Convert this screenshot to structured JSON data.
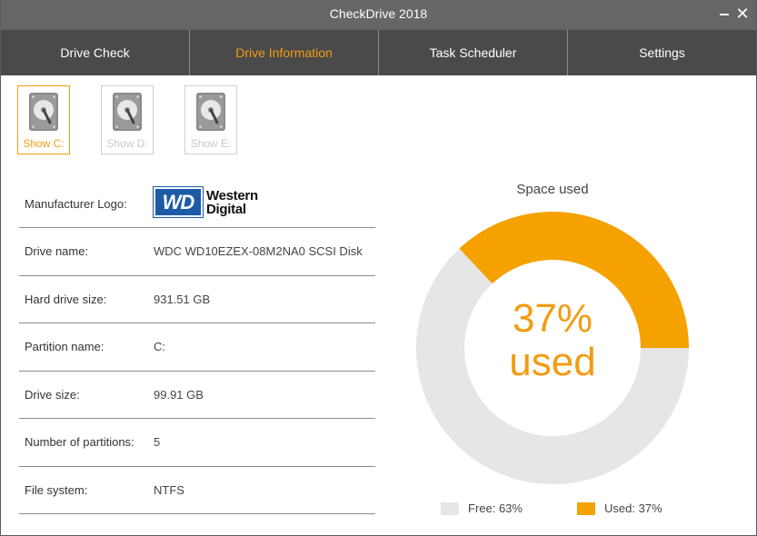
{
  "window": {
    "title": "CheckDrive 2018"
  },
  "tabs": [
    {
      "label": "Drive Check"
    },
    {
      "label": "Drive Information"
    },
    {
      "label": "Task Scheduler"
    },
    {
      "label": "Settings"
    }
  ],
  "drives": [
    {
      "label": "Show C:",
      "selected": true
    },
    {
      "label": "Show D:",
      "selected": false
    },
    {
      "label": "Show E:",
      "selected": false
    }
  ],
  "info": {
    "manufacturer_logo_label": "Manufacturer Logo:",
    "logo_badge": "WD",
    "logo_line1": "Western",
    "logo_line2": "Digital",
    "rows": [
      {
        "label": "Drive name:",
        "value": "WDC WD10EZEX-08M2NA0 SCSI Disk"
      },
      {
        "label": "Hard drive size:",
        "value": "931.51 GB"
      },
      {
        "label": "Partition name:",
        "value": "C:"
      },
      {
        "label": "Drive size:",
        "value": "99.91 GB"
      },
      {
        "label": "Number of partitions:",
        "value": "5"
      },
      {
        "label": "File system:",
        "value": "NTFS"
      }
    ]
  },
  "chart_data": {
    "type": "pie",
    "title": "Space used",
    "center_value": "37%",
    "center_label": "used",
    "series": [
      {
        "name": "Free",
        "value": 63,
        "legend": "Free: 63%",
        "color": "#e6e6e6"
      },
      {
        "name": "Used",
        "value": 37,
        "legend": "Used: 37%",
        "color": "#f5a100"
      }
    ]
  },
  "colors": {
    "accent": "#f39c12",
    "titlebar": "#666666",
    "tabbar": "#4a4a4a",
    "brand_wd": "#1d5ba6"
  }
}
